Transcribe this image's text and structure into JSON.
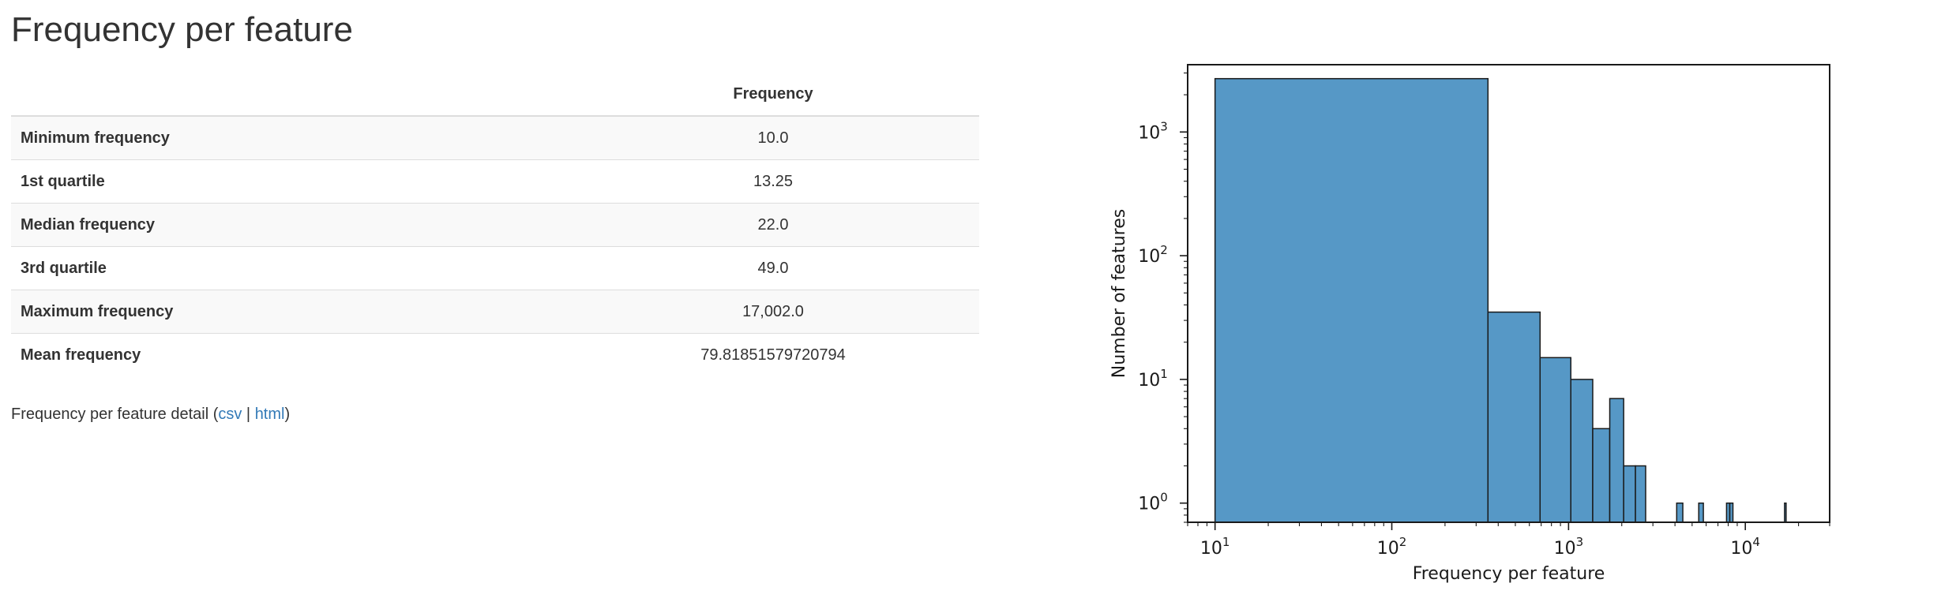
{
  "page": {
    "title": "Frequency per feature"
  },
  "table": {
    "header": "Frequency",
    "rows": [
      {
        "label": "Minimum frequency",
        "value": "10.0"
      },
      {
        "label": "1st quartile",
        "value": "13.25"
      },
      {
        "label": "Median frequency",
        "value": "22.0"
      },
      {
        "label": "3rd quartile",
        "value": "49.0"
      },
      {
        "label": "Maximum frequency",
        "value": "17,002.0"
      },
      {
        "label": "Mean frequency",
        "value": "79.81851579720794"
      }
    ]
  },
  "detail": {
    "prefix": "Frequency per feature detail (",
    "csv_label": "csv",
    "separator": " | ",
    "html_label": "html",
    "suffix": ")"
  },
  "chart_data": {
    "type": "bar",
    "title": "",
    "xlabel": "Frequency per feature",
    "ylabel": "Number of features",
    "x_scale": "log",
    "y_scale": "log",
    "xlim": [
      7,
      30000
    ],
    "ylim": [
      0.7,
      3500
    ],
    "x_ticks": [
      {
        "value": 10,
        "base": "10",
        "exp": "1"
      },
      {
        "value": 100,
        "base": "10",
        "exp": "2"
      },
      {
        "value": 1000,
        "base": "10",
        "exp": "3"
      },
      {
        "value": 10000,
        "base": "10",
        "exp": "4"
      }
    ],
    "y_ticks": [
      {
        "value": 1,
        "base": "10",
        "exp": "0"
      },
      {
        "value": 10,
        "base": "10",
        "exp": "1"
      },
      {
        "value": 100,
        "base": "10",
        "exp": "2"
      },
      {
        "value": 1000,
        "base": "10",
        "exp": "3"
      }
    ],
    "bins": [
      {
        "x0": 10,
        "x1": 350,
        "count": 2700
      },
      {
        "x0": 350,
        "x1": 690,
        "count": 35
      },
      {
        "x0": 690,
        "x1": 1030,
        "count": 15
      },
      {
        "x0": 1030,
        "x1": 1370,
        "count": 10
      },
      {
        "x0": 1370,
        "x1": 1710,
        "count": 4
      },
      {
        "x0": 1710,
        "x1": 2050,
        "count": 7
      },
      {
        "x0": 2050,
        "x1": 2390,
        "count": 2
      },
      {
        "x0": 2390,
        "x1": 2730,
        "count": 2
      },
      {
        "x0": 4090,
        "x1": 4430,
        "count": 1
      },
      {
        "x0": 5450,
        "x1": 5790,
        "count": 1
      },
      {
        "x0": 7830,
        "x1": 8170,
        "count": 1
      },
      {
        "x0": 8170,
        "x1": 8510,
        "count": 1
      },
      {
        "x0": 16670,
        "x1": 17010,
        "count": 1
      }
    ],
    "bar_color": "#5698c6",
    "edge_color": "#1a1a1a",
    "grid": false,
    "legend": "none"
  }
}
